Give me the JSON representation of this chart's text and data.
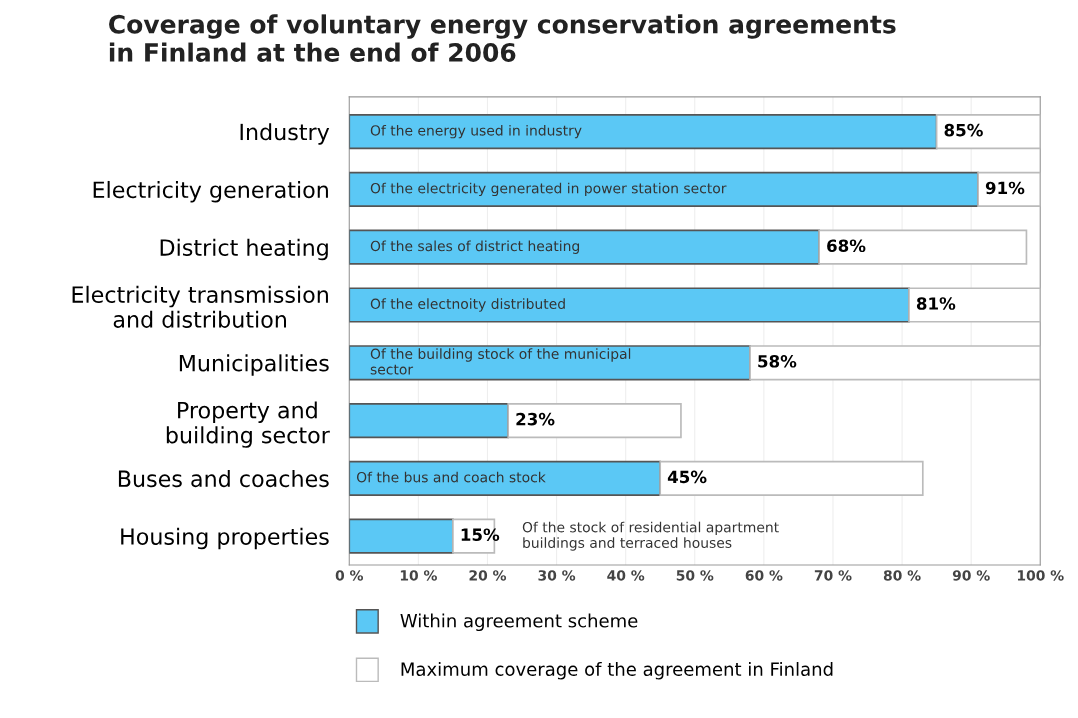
{
  "chart_data": {
    "type": "bar",
    "orientation": "horizontal",
    "stacked": true,
    "title": "Coverage of voluntary energy conservation agreements\nin Finland at the end of 2006",
    "categories": [
      "Industry",
      "Electricity generation",
      "District heating",
      "Electricity transmission\nand distribution",
      "Municipalities",
      "Property and\nbuilding sector",
      "Buses and coaches",
      "Housing properties"
    ],
    "series": [
      {
        "name": "Within agreement scheme",
        "color": "#5bc8f5",
        "values": [
          85,
          91,
          68,
          81,
          58,
          23,
          45,
          15
        ],
        "value_labels": [
          "85%",
          "91%",
          "68%",
          "81%",
          "58%",
          "23%",
          "45%",
          "15%"
        ]
      },
      {
        "name": "Maximum coverage of the agreement in Finland",
        "color": "#ffffff",
        "values": [
          15,
          9,
          30,
          19,
          42,
          25,
          38,
          6
        ]
      }
    ],
    "xlim": [
      0,
      100
    ],
    "xticks": [
      {
        "value": 0,
        "label": "0 %"
      },
      {
        "value": 10,
        "label": "10 %"
      },
      {
        "value": 20,
        "label": "20 %"
      },
      {
        "value": 30,
        "label": "30 %"
      },
      {
        "value": 40,
        "label": "40 %"
      },
      {
        "value": 50,
        "label": "50 %"
      },
      {
        "value": 60,
        "label": "60 %"
      },
      {
        "value": 70,
        "label": "70 %"
      },
      {
        "value": 80,
        "label": "80 %"
      },
      {
        "value": 90,
        "label": "90 %"
      },
      {
        "value": 100,
        "label": "100 %"
      }
    ],
    "annotations": [
      "Of the energy used in industry",
      "Of the electricity generated in power station sector",
      "Of the sales of district heating",
      "Of the electnoity distributed",
      "Of the building stock of the municipal\nsector",
      "Of the bus and coach stock",
      "Of the stock of residential apartment\nbuildings and terraced houses"
    ],
    "grid": "x",
    "legend": "bottom"
  }
}
